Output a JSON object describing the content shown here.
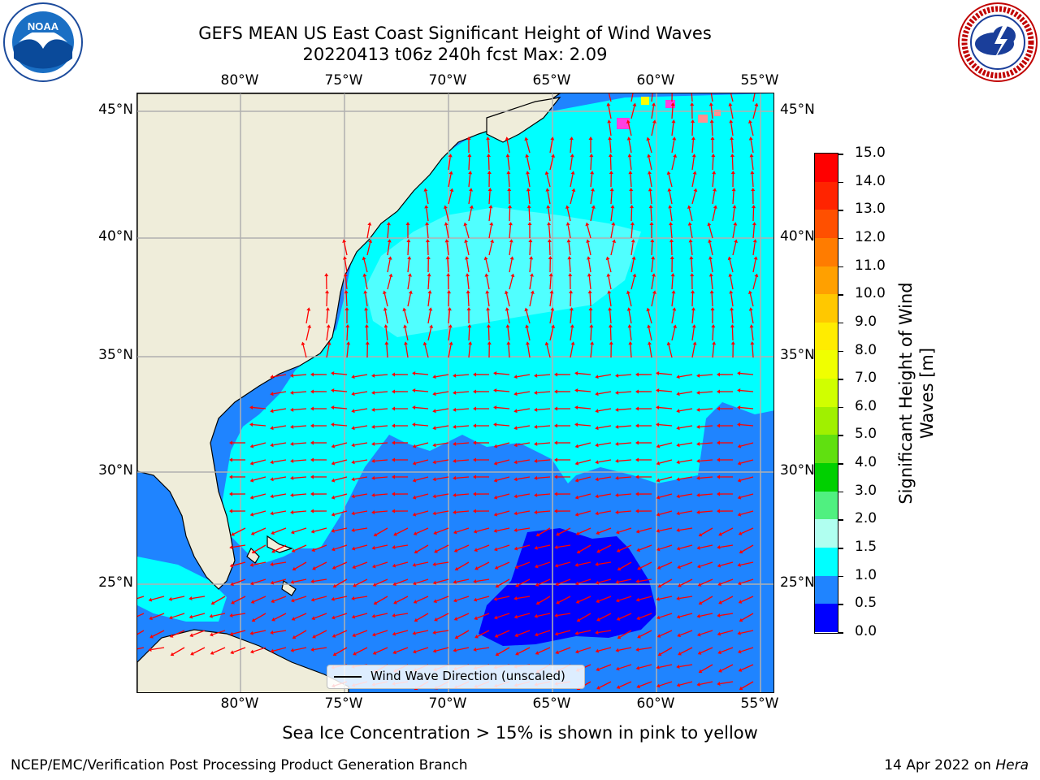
{
  "title_line1": "GEFS MEAN US East Coast Significant Height of Wind Waves",
  "title_line2": "20220413 t06z 240h fcst   Max: 2.09",
  "longitude_labels": [
    "80°W",
    "75°W",
    "70°W",
    "65°W",
    "60°W",
    "55°W"
  ],
  "latitude_labels": [
    "45°N",
    "40°N",
    "35°N",
    "30°N",
    "25°N"
  ],
  "colorbar": {
    "label": "Significant Height of Wind Waves [m]",
    "ticks": [
      "15.0",
      "14.0",
      "13.0",
      "12.0",
      "11.0",
      "10.0",
      "9.0",
      "8.0",
      "7.0",
      "6.0",
      "5.0",
      "4.0",
      "3.0",
      "2.0",
      "1.5",
      "1.0",
      "0.5",
      "0.0"
    ],
    "colors": [
      "#ff0000",
      "#ff2400",
      "#ff5000",
      "#ff7c00",
      "#ffa000",
      "#ffc800",
      "#ffec00",
      "#f0ff00",
      "#d0ff00",
      "#a0f000",
      "#60e010",
      "#00d000",
      "#50f080",
      "#b0fff0",
      "#50ffff",
      "#00ffff",
      "#1f84ff",
      "#0000ff"
    ]
  },
  "legend_label": "Wind Wave Direction (unscaled)",
  "sea_ice_note": "Sea Ice Concentration > 15% is shown in pink to yellow",
  "footer_left": "NCEP/EMC/Verification Post Processing Product Generation Branch",
  "footer_date": "14 Apr 2022 on",
  "footer_machine": "Hera",
  "logos": [
    "noaa-logo",
    "nws-logo"
  ],
  "map_colors": {
    "land": "#efedda",
    "grid": "#b0b0b0",
    "arrow": "#ff0000",
    "wave_0_05": "#0000ff",
    "wave_05_10": "#1f84ff",
    "wave_10_15": "#00ffff",
    "wave_15_20": "#50ffff",
    "sea_ice": "#ff40e0"
  }
}
